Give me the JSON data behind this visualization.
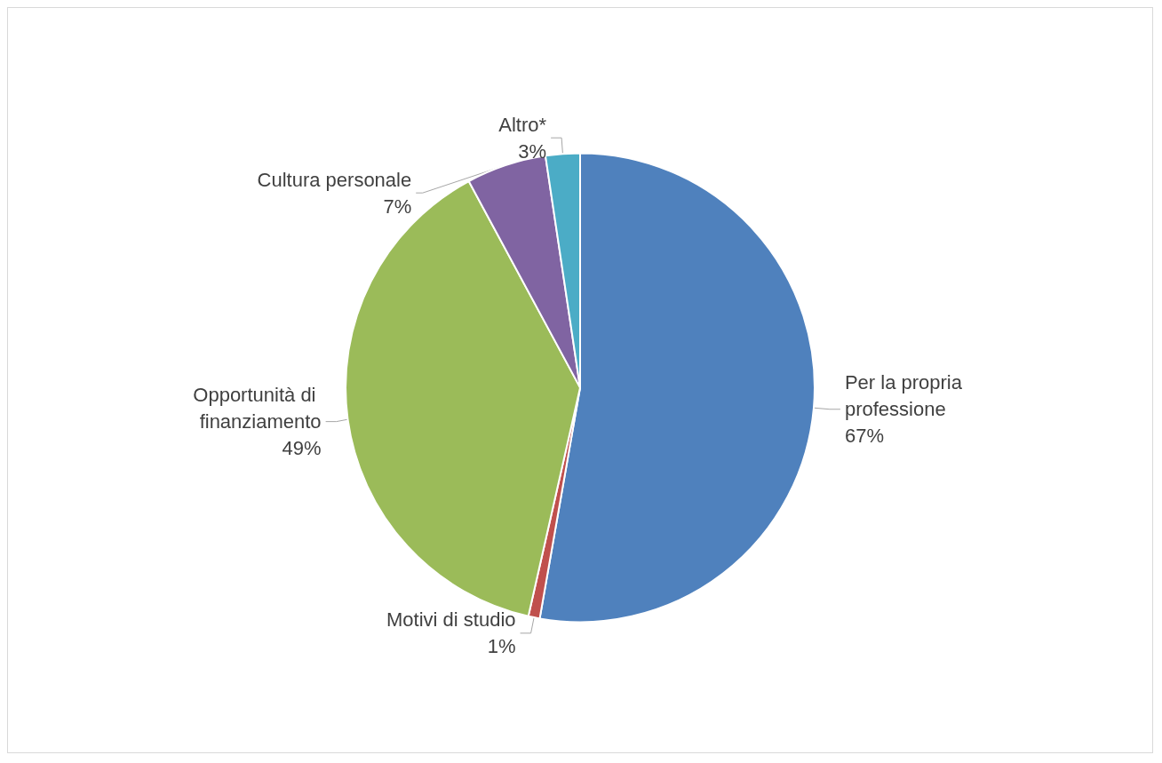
{
  "chart_data": {
    "type": "pie",
    "categories": [
      "Per la propria professione",
      "Motivi di studio",
      "Opportunità di finanziamento",
      "Cultura personale",
      "Altro*"
    ],
    "values": [
      67,
      1,
      49,
      7,
      3
    ],
    "value_labels": [
      "67%",
      "1%",
      "49%",
      "7%",
      "3%"
    ],
    "colors": [
      "#4f81bd",
      "#c0504d",
      "#9bbb59",
      "#8064a2",
      "#4bacc6"
    ]
  }
}
